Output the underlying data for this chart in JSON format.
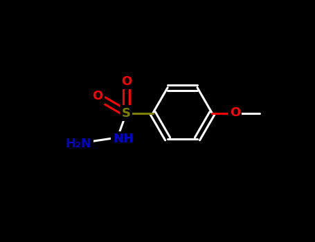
{
  "bg_color": "#000000",
  "bond_color": "#ffffff",
  "atom_colors": {
    "S": "#808000",
    "O": "#ff0000",
    "N": "#0000cd",
    "C": "#ffffff",
    "H": "#ffffff"
  },
  "bond_width": 2.2,
  "font_size": 13,
  "figsize": [
    4.55,
    3.5
  ],
  "dpi": 100,
  "ring_r": 0.95,
  "scale": 1.0
}
